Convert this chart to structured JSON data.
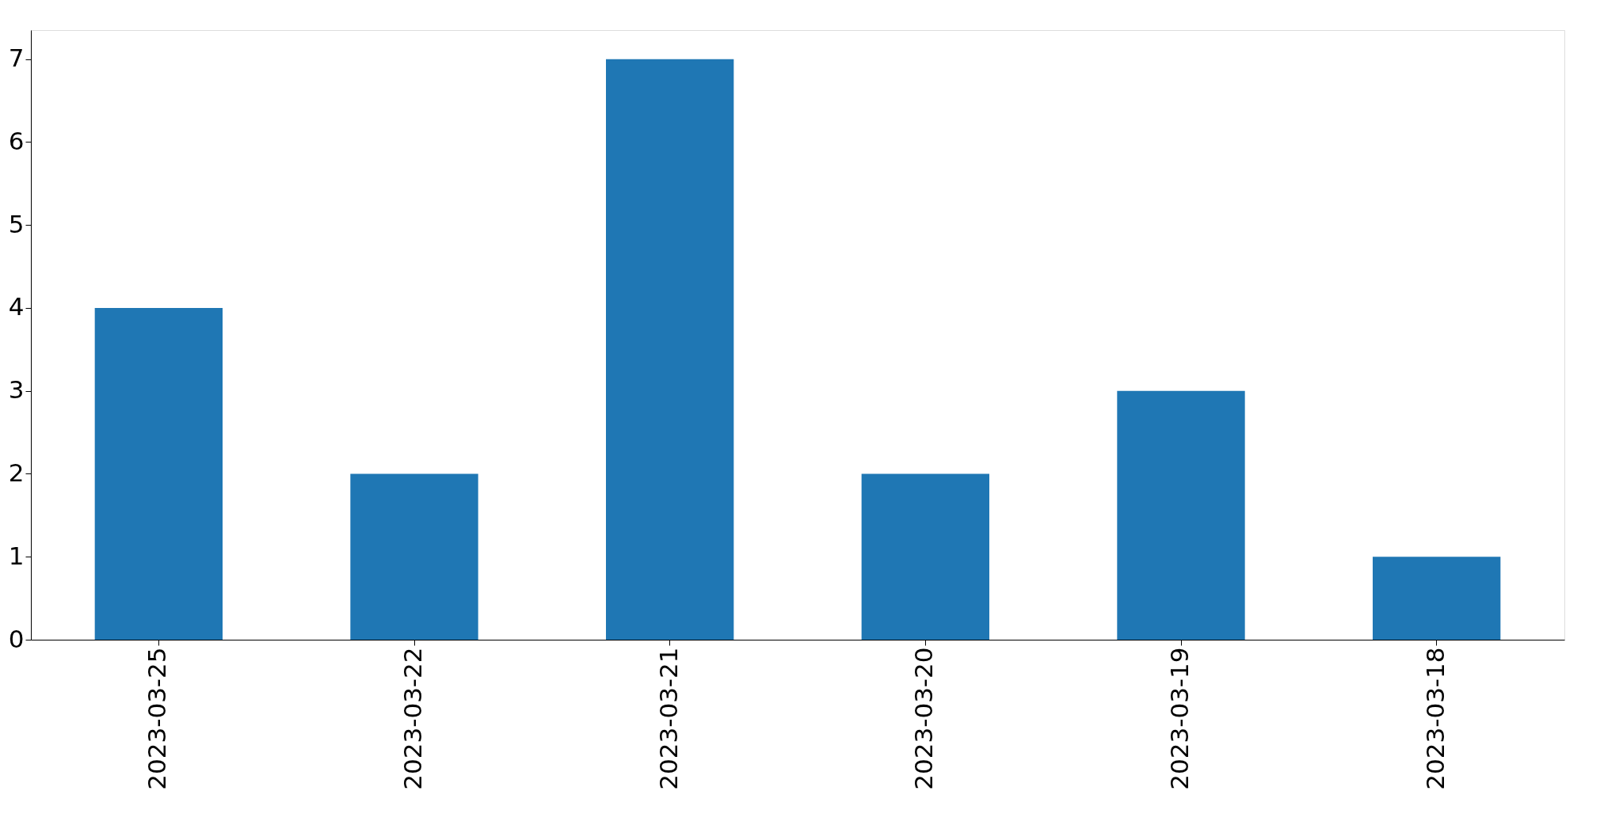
{
  "chart_data": {
    "type": "bar",
    "categories": [
      "2023-03-25",
      "2023-03-22",
      "2023-03-21",
      "2023-03-20",
      "2023-03-19",
      "2023-03-18"
    ],
    "values": [
      4,
      2,
      7,
      2,
      3,
      1
    ],
    "color": "#1f77b4",
    "ylim": [
      0,
      7.35
    ],
    "yticks": [
      0,
      1,
      2,
      3,
      4,
      5,
      6,
      7
    ],
    "grid": false
  }
}
